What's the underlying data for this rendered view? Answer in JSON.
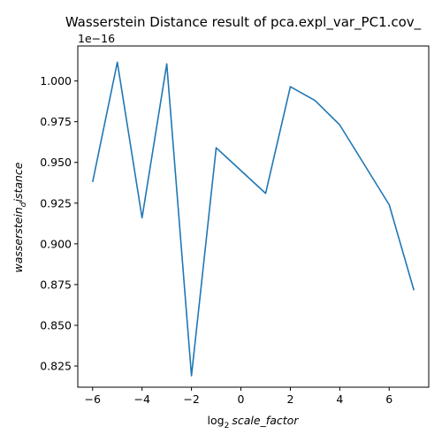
{
  "chart_data": {
    "type": "line",
    "title": "Wasserstein Distance result of pca.expl_var_PC1.cov_",
    "xlabel_prefix": "log",
    "xlabel_sub": "2",
    "xlabel_main": "scale_factor",
    "ylabel_main": "wasserstein",
    "ylabel_sub": "d",
    "ylabel_tail": "istance",
    "y_offset_label": "1e−16",
    "xlim": [
      -6.6,
      7.6
    ],
    "ylim": [
      0.812,
      1.0215
    ],
    "x_ticks": [
      -6,
      -4,
      -2,
      0,
      2,
      4,
      6
    ],
    "x_tick_labels": [
      "−6",
      "−4",
      "−2",
      "0",
      "2",
      "4",
      "6"
    ],
    "y_ticks": [
      0.825,
      0.85,
      0.875,
      0.9,
      0.925,
      0.95,
      0.975,
      1.0
    ],
    "y_tick_labels": [
      "0.825",
      "0.850",
      "0.875",
      "0.900",
      "0.925",
      "0.950",
      "0.975",
      "1.000"
    ],
    "grid": false,
    "series": [
      {
        "color": "#1f77b4",
        "x": [
          -6,
          -5,
          -4,
          -3,
          -2,
          -1,
          1,
          2,
          3,
          4,
          6,
          7
        ],
        "y": [
          0.938,
          1.0115,
          0.916,
          1.0105,
          0.819,
          0.959,
          0.931,
          0.9965,
          0.988,
          0.973,
          0.924,
          0.8715
        ]
      }
    ]
  }
}
